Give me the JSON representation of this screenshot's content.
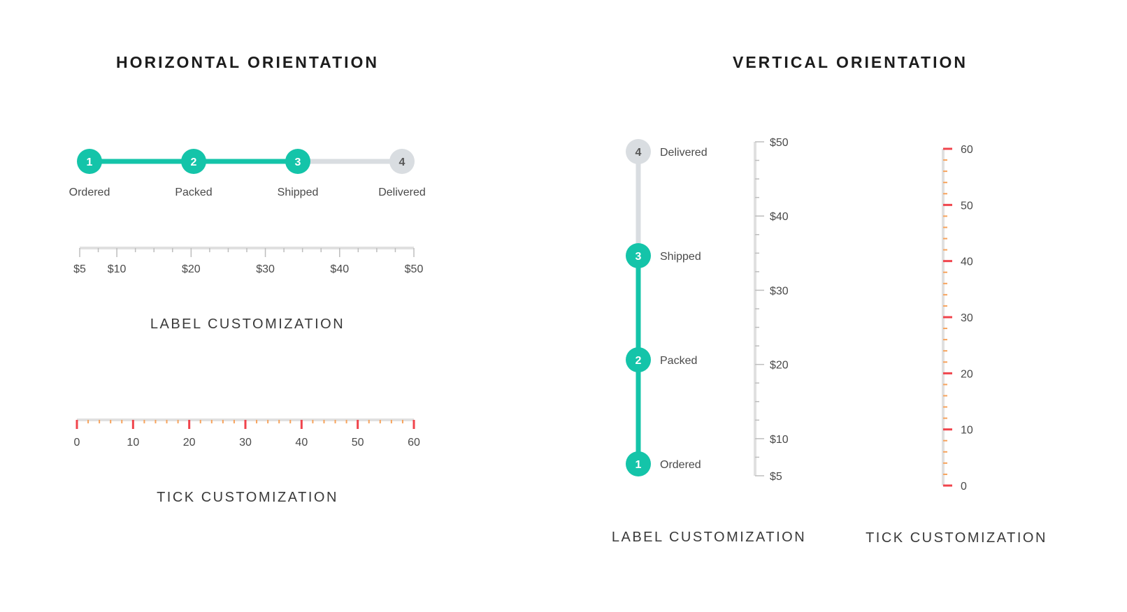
{
  "headings": {
    "horizontal": "HORIZONTAL ORIENTATION",
    "vertical": "VERTICAL ORIENTATION"
  },
  "captions": {
    "h_label": "LABEL CUSTOMIZATION",
    "h_tick": "TICK CUSTOMIZATION",
    "v_label": "LABEL CUSTOMIZATION",
    "v_tick": "TICK CUSTOMIZATION"
  },
  "colors": {
    "accent": "#14c4a9",
    "inactive": "#d9dde1",
    "track": "#e0e0e0",
    "tick": "#bdbdbd",
    "red_tick": "#f0444c",
    "orange_tick": "#f7a35c"
  },
  "stepper": {
    "steps": [
      {
        "number": "1",
        "label": "Ordered",
        "completed": true
      },
      {
        "number": "2",
        "label": "Packed",
        "completed": true
      },
      {
        "number": "3",
        "label": "Shipped",
        "completed": true
      },
      {
        "number": "4",
        "label": "Delivered",
        "completed": false
      }
    ],
    "current_step": 3
  },
  "price_slider": {
    "min": 5,
    "max": 50,
    "labels": [
      "$5",
      "$10",
      "$20",
      "$30",
      "$40",
      "$50"
    ]
  },
  "tick_slider": {
    "min": 0,
    "max": 60,
    "major_step": 10,
    "minor_step": 2,
    "labels": [
      "0",
      "10",
      "20",
      "30",
      "40",
      "50",
      "60"
    ]
  }
}
